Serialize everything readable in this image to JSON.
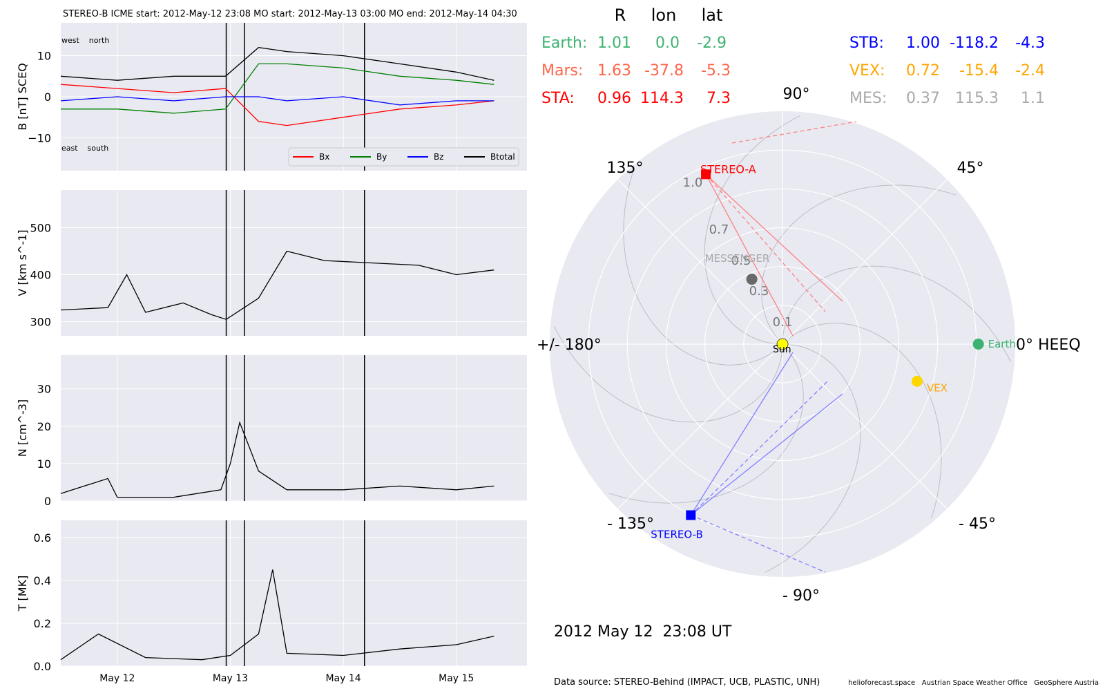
{
  "header": "STEREO-B    ICME start: 2012-May-12 23:08   MO start: 2012-May-13 03:00   MO end: 2012-May-14 04:30",
  "colors": {
    "panel_bg": "#e8e9f1",
    "grid": "#ffffff",
    "bx": "#ff0000",
    "by": "#008000",
    "bz": "#0000ff",
    "btotal": "#000000",
    "earth": "#3cb371",
    "mars": "#ff6347",
    "sta": "#ff0000",
    "stb": "#0000ff",
    "vex": "#ffa500",
    "mes": "#a9a9a9",
    "sun": "#ffff00",
    "messenger_dot": "#696969"
  },
  "chart_data": [
    {
      "type": "line",
      "ylabel": "B [nT] SCEQ",
      "ylim": [
        -18,
        18
      ],
      "yticks": [
        -10,
        0,
        10
      ],
      "event_lines": [
        "2012-05-12T23:08",
        "2012-05-13T03:00",
        "2012-05-14T04:30"
      ],
      "annotations": {
        "top_left": "west    north",
        "bottom_left": "east    south"
      },
      "legend": {
        "placement": "lower right",
        "items": [
          "Bx",
          "By",
          "Bz",
          "Btotal"
        ]
      },
      "series": [
        {
          "name": "Bx",
          "x": [
            "2012-05-11T12:00",
            "2012-05-12T00:00",
            "2012-05-12T12:00",
            "2012-05-12T23:00",
            "2012-05-13T06:00",
            "2012-05-13T12:00",
            "2012-05-14T00:00",
            "2012-05-14T12:00",
            "2012-05-15T00:00",
            "2012-05-15T08:00"
          ],
          "values": [
            3,
            2,
            1,
            2,
            -6,
            -7,
            -5,
            -3,
            -2,
            -1
          ]
        },
        {
          "name": "By",
          "x": [
            "2012-05-11T12:00",
            "2012-05-12T00:00",
            "2012-05-12T12:00",
            "2012-05-12T23:00",
            "2012-05-13T06:00",
            "2012-05-13T12:00",
            "2012-05-14T00:00",
            "2012-05-14T12:00",
            "2012-05-15T00:00",
            "2012-05-15T08:00"
          ],
          "values": [
            -3,
            -3,
            -4,
            -3,
            8,
            8,
            7,
            5,
            4,
            3
          ]
        },
        {
          "name": "Bz",
          "x": [
            "2012-05-11T12:00",
            "2012-05-12T00:00",
            "2012-05-12T12:00",
            "2012-05-12T23:00",
            "2012-05-13T06:00",
            "2012-05-13T12:00",
            "2012-05-14T00:00",
            "2012-05-14T12:00",
            "2012-05-15T00:00",
            "2012-05-15T08:00"
          ],
          "values": [
            -1,
            0,
            -1,
            0,
            0,
            -1,
            0,
            -2,
            -1,
            -1
          ]
        },
        {
          "name": "Btotal",
          "x": [
            "2012-05-11T12:00",
            "2012-05-12T00:00",
            "2012-05-12T12:00",
            "2012-05-12T23:00",
            "2012-05-13T06:00",
            "2012-05-13T12:00",
            "2012-05-14T00:00",
            "2012-05-14T12:00",
            "2012-05-15T00:00",
            "2012-05-15T08:00"
          ],
          "values": [
            5,
            4,
            5,
            5,
            12,
            11,
            10,
            8,
            6,
            4
          ]
        }
      ]
    },
    {
      "type": "line",
      "ylabel": "V [km s^-1]",
      "ylim": [
        270,
        580
      ],
      "yticks": [
        300,
        400,
        500
      ],
      "event_lines": [
        "2012-05-12T23:08",
        "2012-05-13T03:00",
        "2012-05-14T04:30"
      ],
      "series": [
        {
          "name": "V",
          "x": [
            "2012-05-11T12:00",
            "2012-05-11T22:00",
            "2012-05-12T02:00",
            "2012-05-12T06:00",
            "2012-05-12T14:00",
            "2012-05-12T20:00",
            "2012-05-12T23:08",
            "2012-05-13T06:00",
            "2012-05-13T12:00",
            "2012-05-13T20:00",
            "2012-05-14T06:00",
            "2012-05-14T16:00",
            "2012-05-15T00:00",
            "2012-05-15T08:00"
          ],
          "values": [
            325,
            330,
            400,
            320,
            340,
            315,
            305,
            350,
            450,
            430,
            425,
            420,
            400,
            410
          ]
        }
      ]
    },
    {
      "type": "line",
      "ylabel": "N [cm^-3]",
      "ylim": [
        0,
        39
      ],
      "yticks": [
        0,
        10,
        20,
        30
      ],
      "event_lines": [
        "2012-05-12T23:08",
        "2012-05-13T03:00",
        "2012-05-14T04:30"
      ],
      "series": [
        {
          "name": "N",
          "x": [
            "2012-05-11T12:00",
            "2012-05-11T22:00",
            "2012-05-12T00:00",
            "2012-05-12T12:00",
            "2012-05-12T22:00",
            "2012-05-13T00:00",
            "2012-05-13T02:00",
            "2012-05-13T06:00",
            "2012-05-13T12:00",
            "2012-05-14T00:00",
            "2012-05-14T12:00",
            "2012-05-15T00:00",
            "2012-05-15T08:00"
          ],
          "values": [
            2,
            6,
            1,
            1,
            3,
            10,
            21,
            8,
            3,
            3,
            4,
            3,
            4
          ]
        }
      ]
    },
    {
      "type": "line",
      "ylabel": "T [MK]",
      "ylim": [
        0,
        0.68
      ],
      "yticks": [
        0.0,
        0.2,
        0.4,
        0.6
      ],
      "xticks": [
        "May 12",
        "May 13",
        "May 14",
        "May 15"
      ],
      "event_lines": [
        "2012-05-12T23:08",
        "2012-05-13T03:00",
        "2012-05-14T04:30"
      ],
      "series": [
        {
          "name": "T",
          "x": [
            "2012-05-11T12:00",
            "2012-05-11T20:00",
            "2012-05-12T06:00",
            "2012-05-12T18:00",
            "2012-05-13T00:00",
            "2012-05-13T06:00",
            "2012-05-13T09:00",
            "2012-05-13T12:00",
            "2012-05-14T00:00",
            "2012-05-14T12:00",
            "2012-05-15T00:00",
            "2012-05-15T08:00"
          ],
          "values": [
            0.03,
            0.15,
            0.04,
            0.03,
            0.05,
            0.15,
            0.45,
            0.06,
            0.05,
            0.08,
            0.1,
            0.14
          ]
        }
      ]
    },
    {
      "type": "scatter",
      "chart_kind": "polar",
      "ring_labels": [
        "0.1",
        "0.3",
        "0.5",
        "0.7",
        "1.0"
      ],
      "angle_labels": [
        "0° HEEQ",
        "45°",
        "90°",
        "135°",
        "+/- 180°",
        "- 135°",
        "- 90°",
        "- 45°"
      ],
      "bodies": [
        {
          "name": "Sun",
          "r": 0.0,
          "lon": 0.0
        },
        {
          "name": "Earth",
          "r": 1.01,
          "lon": 0.0
        },
        {
          "name": "VEX",
          "r": 0.72,
          "lon": -15.4
        },
        {
          "name": "MESSENGER",
          "r": 0.37,
          "lon": 115.3
        },
        {
          "name": "STEREO-A",
          "r": 0.96,
          "lon": 114.3
        },
        {
          "name": "STEREO-B",
          "r": 1.0,
          "lon": -118.2
        }
      ],
      "table": {
        "headers": [
          "R",
          "lon",
          "lat"
        ],
        "rows": [
          {
            "name": "Earth:",
            "R": "1.01",
            "lon": "0.0",
            "lat": "-2.9"
          },
          {
            "name": "Mars:",
            "R": "1.63",
            "lon": "-37.8",
            "lat": "-5.3"
          },
          {
            "name": "STA:",
            "R": "0.96",
            "lon": "114.3",
            "lat": "7.3"
          },
          {
            "name": "STB:",
            "R": "1.00",
            "lon": "-118.2",
            "lat": "-4.3"
          },
          {
            "name": "VEX:",
            "R": "0.72",
            "lon": "-15.4",
            "lat": "-2.4"
          },
          {
            "name": "MES:",
            "R": "0.37",
            "lon": "115.3",
            "lat": "1.1"
          }
        ]
      }
    }
  ],
  "timestamp": "2012 May 12  23:08 UT",
  "footer": {
    "source": "Data source: STEREO-Behind (IMPACT, UCB, PLASTIC, UNH)",
    "credits": "helioforecast.space   Austrian Space Weather Office   GeoSphere Austria"
  }
}
